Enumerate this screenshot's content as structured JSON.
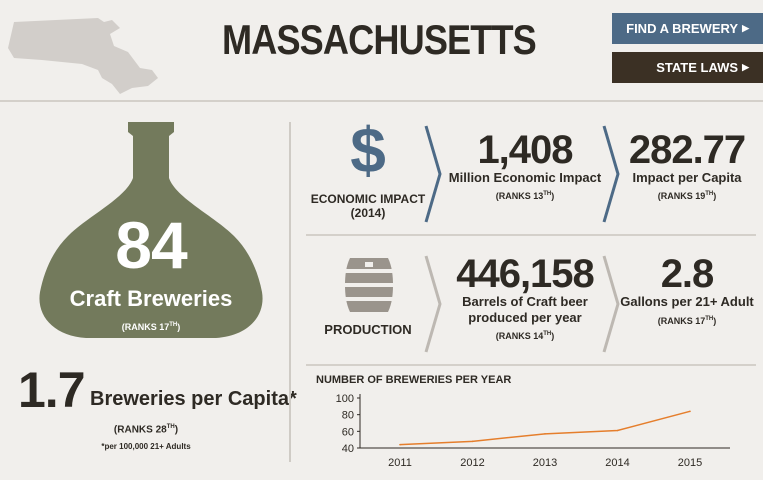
{
  "header": {
    "title": "MASSACHUSETTS",
    "find_brewery": "FIND A BREWERY",
    "state_laws": "STATE LAWS",
    "arrow": "▶"
  },
  "breweries": {
    "count": "84",
    "label": "Craft Breweries",
    "ranks_prefix": "(RANKS 17",
    "ranks_sup": "TH",
    "ranks_suffix": ")"
  },
  "per_capita": {
    "value": "1.7",
    "label": "Breweries per Capita*",
    "ranks_prefix": "(RANKS 28",
    "ranks_sup": "TH",
    "ranks_suffix": ")",
    "footnote": "*per 100,000 21+ Adults"
  },
  "economic": {
    "symbol": "$",
    "title_line1": "ECONOMIC IMPACT",
    "title_line2": "(2014)",
    "stat1_value": "1,408",
    "stat1_label": "Million Economic Impact",
    "stat1_ranks_prefix": "(RANKS 13",
    "stat1_ranks_sup": "TH",
    "stat1_ranks_suffix": ")",
    "stat2_value": "282.77",
    "stat2_label": "Impact per Capita",
    "stat2_ranks_prefix": "(RANKS 19",
    "stat2_ranks_sup": "TH",
    "stat2_ranks_suffix": ")"
  },
  "production": {
    "title": "PRODUCTION",
    "stat1_value": "446,158",
    "stat1_label_line1": "Barrels of Craft beer",
    "stat1_label_line2": "produced per year",
    "stat1_ranks_prefix": "(RANKS 14",
    "stat1_ranks_sup": "TH",
    "stat1_ranks_suffix": ")",
    "stat2_value": "2.8",
    "stat2_label": "Gallons per 21+ Adult",
    "stat2_ranks_prefix": "(RANKS 17",
    "stat2_ranks_sup": "TH",
    "stat2_ranks_suffix": ")"
  },
  "colors": {
    "blue": "#4d6a86",
    "dark": "#3b3024",
    "olive": "#737a5c",
    "line": "#e57e2c",
    "map": "#d2ceca"
  },
  "chart_data": {
    "type": "line",
    "title": "NUMBER OF BREWERIES PER YEAR",
    "categories": [
      "2011",
      "2012",
      "2013",
      "2014",
      "2015"
    ],
    "yticks": [
      "100",
      "80",
      "60",
      "40"
    ],
    "ylim": [
      40,
      100
    ],
    "values": [
      44,
      48,
      57,
      61,
      84
    ],
    "grid": false,
    "legend": "none"
  }
}
